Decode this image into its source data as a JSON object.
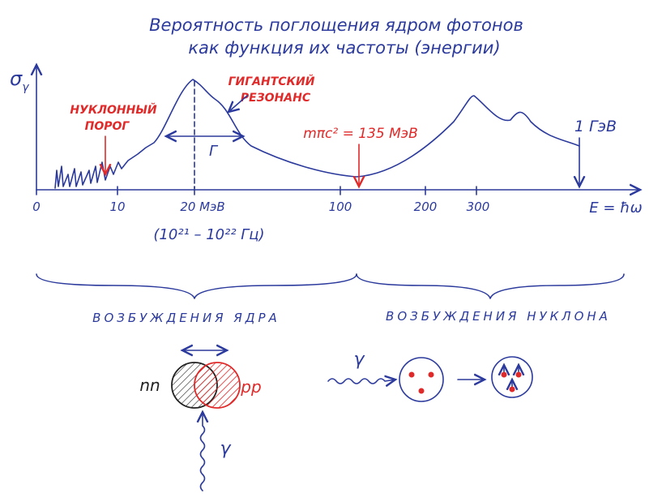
{
  "title": {
    "line1": "Вероятность поглощения ядром фотонов",
    "line2": "как функция их частоты (энергии)"
  },
  "y_axis": {
    "symbol": "σ",
    "sub": "γ"
  },
  "x_axis": {
    "label": "E = ħω",
    "ticks": [
      "0",
      "10",
      "20 МэВ",
      "100",
      "200",
      "300"
    ],
    "frequency": "(10²¹ – 10²² Гц)"
  },
  "annotations": {
    "threshold": [
      "НУКЛОННЫЙ",
      "ПОРОГ"
    ],
    "resonance": [
      "ГИГАНТСКИЙ",
      "РЕЗОНАНС"
    ],
    "width": "Γ",
    "pion": "mπc² = 135 МэВ",
    "gev": "1 ГэВ"
  },
  "regions": {
    "nucleus": "ВОЗБУЖДЕНИЯ ЯДРА",
    "nucleon": "ВОЗБУЖДЕНИЯ НУКЛОНА"
  },
  "nucleus_sketch": {
    "neutrons": "nn",
    "protons": "pp",
    "photon": "γ"
  },
  "nucleon_sketch": {
    "photon": "γ"
  }
}
